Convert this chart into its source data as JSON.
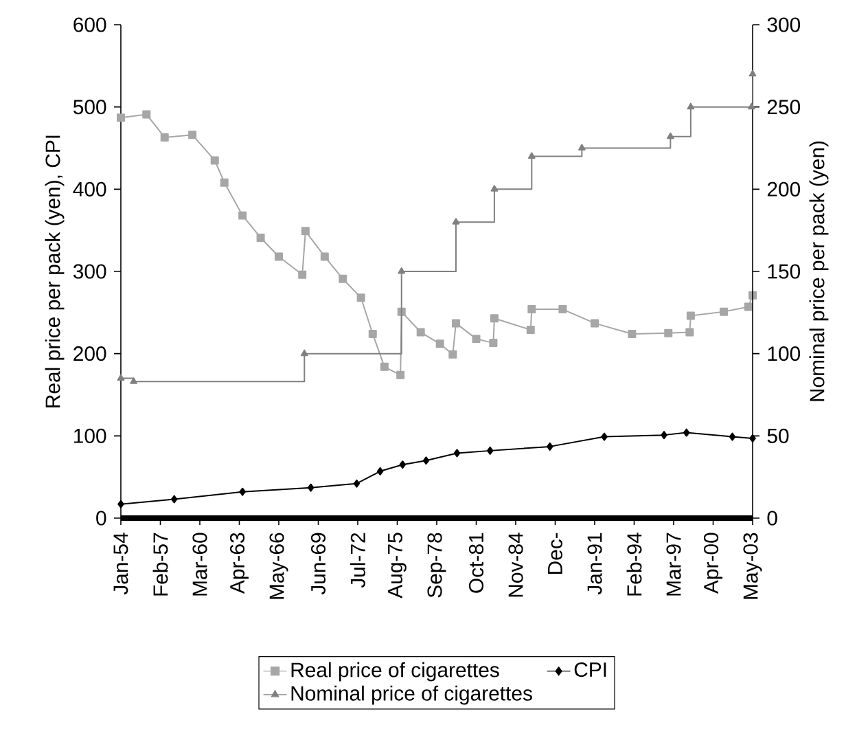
{
  "chart_data": {
    "type": "line",
    "ylabel": "Real price per pack (yen), CPI",
    "y2label": "Nominal price per pack (yen)",
    "xlim": [
      "1954-01",
      "2003-05"
    ],
    "xticks": [
      {
        "value": "1954-01",
        "label": "Jan-54"
      },
      {
        "value": "1957-02",
        "label": "Feb-57"
      },
      {
        "value": "1960-03",
        "label": "Mar-60"
      },
      {
        "value": "1963-04",
        "label": "Apr-63"
      },
      {
        "value": "1966-05",
        "label": "May-66"
      },
      {
        "value": "1969-06",
        "label": "Jun-69"
      },
      {
        "value": "1972-07",
        "label": "Jul-72"
      },
      {
        "value": "1975-08",
        "label": "Aug-75"
      },
      {
        "value": "1978-09",
        "label": "Sep-78"
      },
      {
        "value": "1981-10",
        "label": "Oct-81"
      },
      {
        "value": "1984-11",
        "label": "Nov-84"
      },
      {
        "value": "1987-12",
        "label": "Dec-"
      },
      {
        "value": "1991-01",
        "label": "Jan-91"
      },
      {
        "value": "1994-02",
        "label": "Feb-94"
      },
      {
        "value": "1997-03",
        "label": "Mar-97"
      },
      {
        "value": "2000-04",
        "label": "Apr-00"
      },
      {
        "value": "2003-05",
        "label": "May-03"
      }
    ],
    "ylim": [
      0,
      600
    ],
    "yticks": [
      0,
      100,
      200,
      300,
      400,
      500,
      600
    ],
    "y2lim": [
      0,
      300
    ],
    "y2ticks": [
      0,
      50,
      100,
      150,
      200,
      250,
      300
    ],
    "grid": false,
    "legend": "bottom",
    "series": [
      {
        "name": "Real price of cigarettes",
        "color": "#a6a6a6",
        "marker": "square",
        "x": [
          "1954-01",
          "1956-01",
          "1957-06",
          "1959-08",
          "1961-05",
          "1962-02",
          "1963-07",
          "1964-12",
          "1966-05",
          "1968-03",
          "1968-06",
          "1969-12",
          "1971-05",
          "1972-10",
          "1973-09",
          "1974-08",
          "1975-11",
          "1975-12",
          "1977-06",
          "1978-12",
          "1979-12",
          "1980-03",
          "1981-10",
          "1983-02",
          "1983-03",
          "1986-01",
          "1986-02",
          "1988-07",
          "1991-01",
          "1993-12",
          "1996-10",
          "1998-06",
          "1998-07",
          "2001-02",
          "2003-01",
          "2003-05"
        ],
        "values": [
          487,
          491,
          463,
          466,
          435,
          408,
          368,
          341,
          318,
          296,
          349,
          318,
          291,
          268,
          224,
          184,
          174,
          251,
          226,
          212,
          199,
          237,
          218,
          213,
          243,
          229,
          254,
          254,
          237,
          224,
          225,
          226,
          246,
          251,
          257,
          271
        ]
      },
      {
        "name": "CPI",
        "color": "#000000",
        "marker": "diamond",
        "x": [
          "1954-01",
          "1958-03",
          "1963-07",
          "1968-11",
          "1972-06",
          "1974-04",
          "1976-01",
          "1977-11",
          "1980-04",
          "1982-11",
          "1987-07",
          "1991-10",
          "1996-06",
          "1998-03",
          "2001-10",
          "2003-05"
        ],
        "values": [
          17,
          23,
          32,
          37,
          42,
          57,
          65,
          70,
          79,
          82,
          87,
          99,
          101,
          104,
          99,
          97
        ]
      },
      {
        "name": "Nominal price of cigarettes",
        "type": "step",
        "axis": "y2",
        "color": "#808080",
        "marker": "triangle",
        "x": [
          "1954-01",
          "1955-01",
          "1968-05",
          "1975-12",
          "1980-03",
          "1983-03",
          "1986-02",
          "1990-01",
          "1996-12",
          "1998-07",
          "2003-04",
          "2003-05"
        ],
        "values": [
          85,
          83,
          100,
          150,
          180,
          200,
          220,
          225,
          232,
          250,
          250,
          270
        ]
      }
    ]
  }
}
